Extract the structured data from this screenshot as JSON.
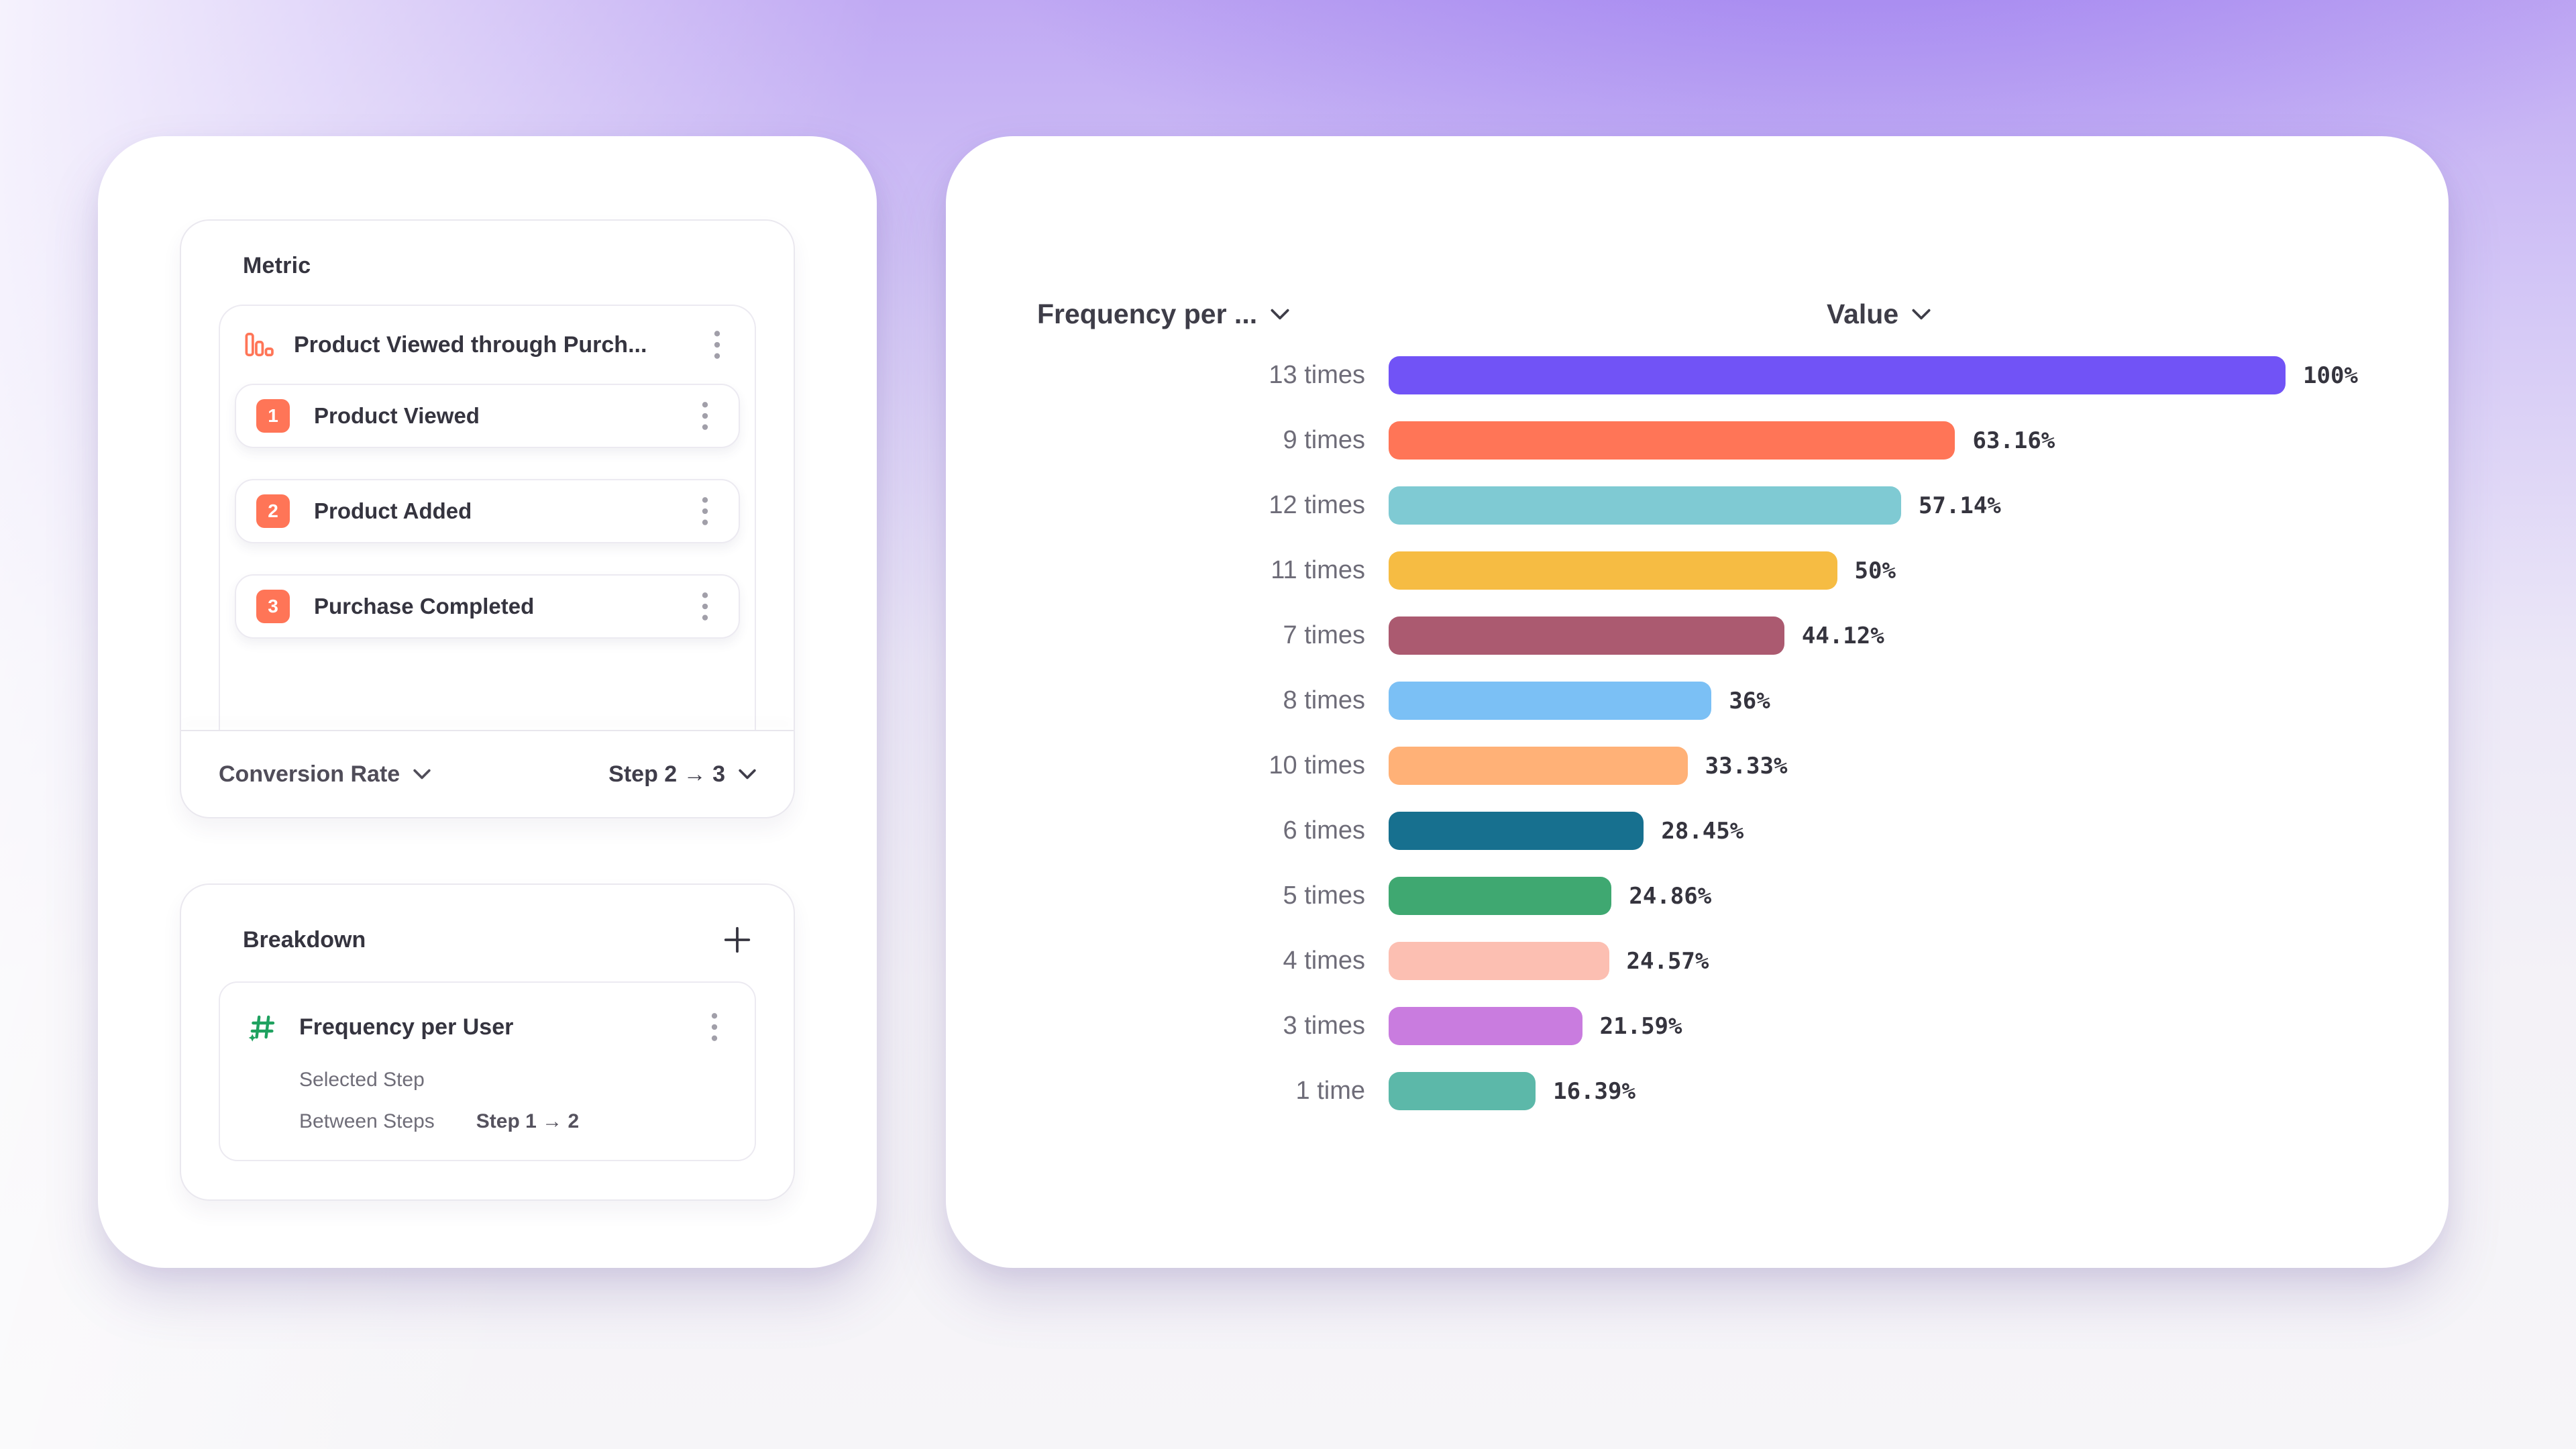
{
  "colors": {
    "accent_coral": "#FF7557",
    "accent_green": "#1EA15F",
    "card_background": "#FFFFFF",
    "text_dark": "#35343F",
    "text_gray": "#6E6C78",
    "border": "#EAE8EF"
  },
  "left_panel": {
    "metric": {
      "title": "Metric",
      "funnel": {
        "icon": "bar-chart-icon",
        "title": "Product Viewed through Purch...",
        "menu_icon": "kebab-menu-icon",
        "steps": [
          {
            "number": "1",
            "label": "Product Viewed"
          },
          {
            "number": "2",
            "label": "Product Added"
          },
          {
            "number": "3",
            "label": "Purchase Completed"
          }
        ]
      },
      "footer": {
        "measure_label": "Conversion Rate",
        "step_range_label": "Step 2 → 3"
      }
    },
    "breakdown": {
      "title": "Breakdown",
      "add_icon": "plus-icon",
      "item": {
        "icon": "numeric-property-icon",
        "title": "Frequency per User",
        "sub1_label": "Selected Step",
        "sub2_label": "Between Steps",
        "sub2_value": "Step 1 → 2"
      }
    }
  },
  "chart": {
    "breakdown_column_label": "Frequency per ...",
    "value_column_label": "Value"
  },
  "chart_data": {
    "type": "bar",
    "orientation": "horizontal",
    "title": "",
    "xlabel": "Value",
    "ylabel": "Frequency per User",
    "xlim": [
      0,
      100
    ],
    "grid": false,
    "categories": [
      "13 times",
      "9 times",
      "12 times",
      "11 times",
      "7 times",
      "8 times",
      "10 times",
      "6 times",
      "5 times",
      "4 times",
      "3 times",
      "1 time"
    ],
    "values": [
      100,
      63.16,
      57.14,
      50,
      44.12,
      36,
      33.33,
      28.45,
      24.86,
      24.57,
      21.59,
      16.39
    ],
    "value_labels": [
      "100%",
      "63.16%",
      "57.14%",
      "50%",
      "44.12%",
      "36%",
      "33.33%",
      "28.45%",
      "24.86%",
      "24.57%",
      "21.59%",
      "16.39%"
    ],
    "bar_colors": [
      "#7153F6",
      "#FF7557",
      "#7FCAD3",
      "#F6BC43",
      "#AB5A70",
      "#7BC0F5",
      "#FFB177",
      "#17708F",
      "#3FA871",
      "#FCBFB2",
      "#C97CDF",
      "#5CB8A9"
    ]
  }
}
